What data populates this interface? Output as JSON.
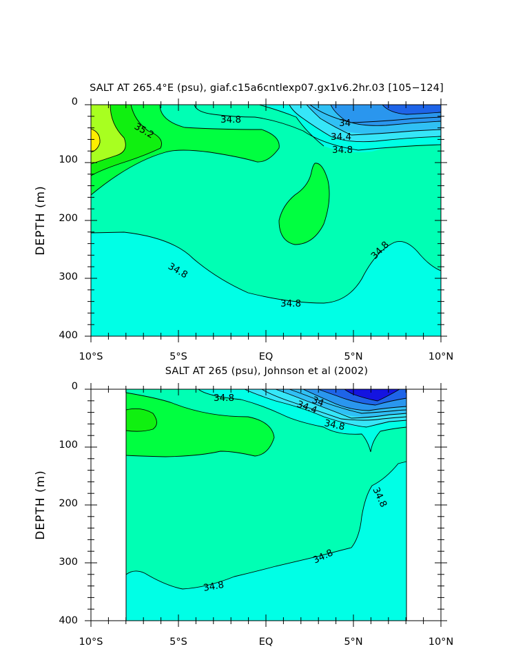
{
  "colors": {
    "background": "#ffffff",
    "salt_lt_33_8": "#1414e0",
    "salt_33_8_34_0": "#1e64e8",
    "salt_34_0_34_2": "#2a96ee",
    "salt_34_2_34_4": "#30c0f4",
    "salt_34_4_34_6": "#36e6f8",
    "salt_34_6_34_8": "#00ffe6",
    "salt_34_8_35_0": "#00ffb4",
    "salt_35_0_35_2": "#00ff40",
    "salt_35_2_35_4": "#10f010",
    "salt_35_4_35_6": "#a8ff20",
    "salt_gt_35_6": "#ffee00"
  },
  "chart_data": [
    {
      "type": "contour",
      "title": "SALT AT 265.4°E (psu), giaf.c15a6cntlexp07.gx1v6.2hr.03 [105−124]",
      "variable": "SALT",
      "units": "psu",
      "xlabel": "",
      "ylabel": "DEPTH (m)",
      "x_ticks": [
        "10°S",
        "5°S",
        "EQ",
        "5°N",
        "10°N"
      ],
      "x_tick_values": [
        -10,
        -5,
        0,
        5,
        10
      ],
      "y_ticks": [
        "0",
        "100",
        "200",
        "300",
        "400"
      ],
      "y_tick_values": [
        0,
        100,
        200,
        300,
        400
      ],
      "xlim": [
        -10,
        10
      ],
      "ylim": [
        0,
        400
      ],
      "y_inverted": true,
      "contour_interval": 0.2,
      "contour_labels": [
        "34.8",
        "35.2",
        "34",
        "34.4",
        "34.8",
        "34.8",
        "34.8",
        "34.8"
      ],
      "regions": [
        {
          "range": "34.6-34.8",
          "note": "deep layer below ~225-350 m"
        },
        {
          "range": "34.8-35.0",
          "note": "bulk of upper ocean"
        },
        {
          "range": "35.0-35.2",
          "note": "southern tongue to ~100 m; subsurface lens near 2°N, 110-240 m"
        },
        {
          "range": "35.2-35.6",
          "note": "surface maximum near 10°S"
        },
        {
          "range": "<34.8",
          "note": "fresh surface water north of EQ, minimum ~33.8 near 8°N"
        }
      ]
    },
    {
      "type": "contour",
      "title": "SALT AT 265 (psu), Johnson et al (2002)",
      "variable": "SALT",
      "units": "psu",
      "xlabel": "",
      "ylabel": "DEPTH (m)",
      "x_ticks": [
        "10°S",
        "5°S",
        "EQ",
        "5°N",
        "10°N"
      ],
      "x_tick_values": [
        -10,
        -5,
        0,
        5,
        10
      ],
      "y_ticks": [
        "0",
        "100",
        "200",
        "300",
        "400"
      ],
      "y_tick_values": [
        0,
        100,
        200,
        300,
        400
      ],
      "xlim": [
        -10,
        10
      ],
      "ylim": [
        0,
        400
      ],
      "data_x_range": [
        -8,
        8
      ],
      "y_inverted": true,
      "contour_interval": 0.2,
      "contour_labels": [
        "34.8",
        "34",
        "34.4",
        "34.8",
        "34.8",
        "34.8",
        "34.8"
      ],
      "regions": [
        {
          "range": "34.6-34.8",
          "note": "deep layer below ~300-350 m, rising to ~165 m near 8°N"
        },
        {
          "range": "34.8-35.0",
          "note": "bulk of upper ocean"
        },
        {
          "range": "35.0-35.2",
          "note": "southern tongue 5-110 m from 8°S to EQ"
        },
        {
          "range": "35.2-35.4",
          "note": "small core near 7°S, 50-75 m"
        },
        {
          "range": "<34.8",
          "note": "fresh surface water north of EQ, minimum ~33.8 near 5°N"
        }
      ]
    }
  ]
}
